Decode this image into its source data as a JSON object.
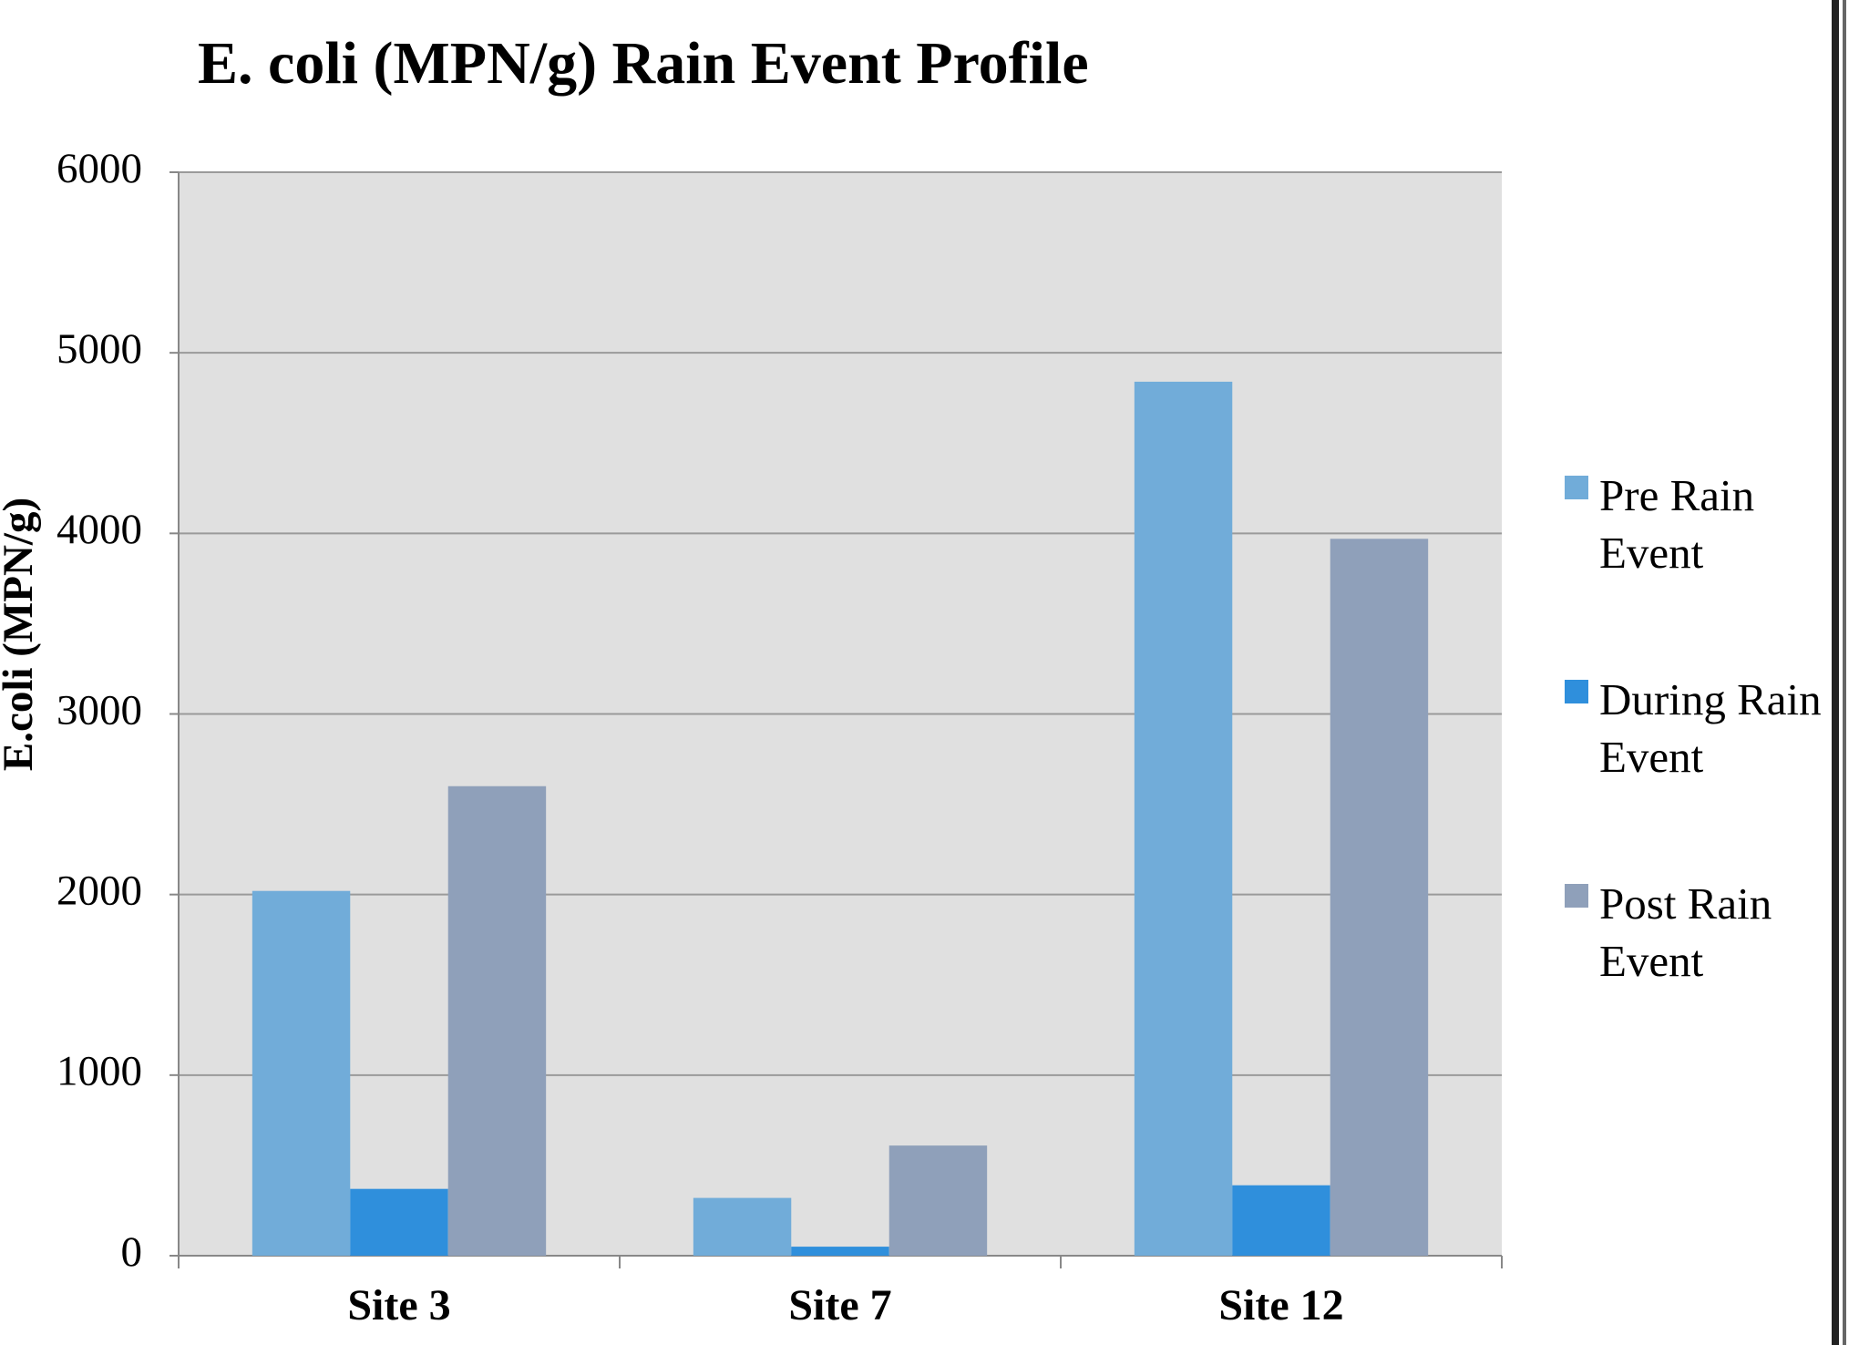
{
  "chart_data": {
    "type": "bar",
    "title": "E. coli (MPN/g) Rain Event Profile",
    "y_label": "E.coli (MPN/g)",
    "categories": [
      "Site 3",
      "Site 7",
      "Site 12"
    ],
    "series": [
      {
        "name": "Pre Rain Event",
        "color": "#71acd9",
        "values": [
          2020,
          320,
          4840
        ]
      },
      {
        "name": "During Rain Event",
        "color": "#2f8fdc",
        "values": [
          370,
          50,
          390
        ]
      },
      {
        "name": "Post Rain Event",
        "color": "#8fa0ba",
        "values": [
          2600,
          610,
          3970
        ]
      }
    ],
    "ylim": [
      0,
      6000
    ],
    "yticks": [
      0,
      1000,
      2000,
      3000,
      4000,
      5000,
      6000
    ],
    "grid": true,
    "legend": "right"
  }
}
